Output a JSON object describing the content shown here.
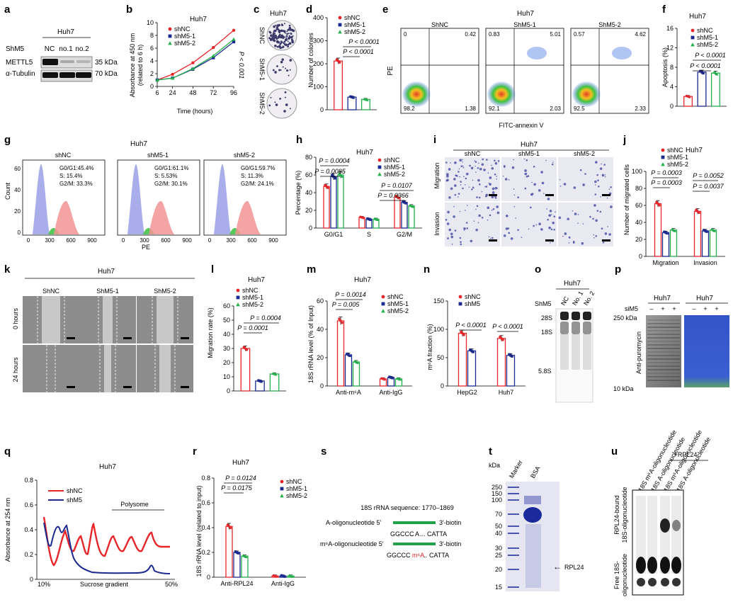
{
  "cell_line": "Huh7",
  "panel_letters": [
    "a",
    "b",
    "c",
    "d",
    "e",
    "f",
    "g",
    "h",
    "i",
    "j",
    "k",
    "l",
    "m",
    "n",
    "o",
    "p",
    "q",
    "r",
    "s",
    "t",
    "u"
  ],
  "legend": {
    "nc": "shNC",
    "m1": "shM5-1",
    "m2": "shM5-2",
    "m": "shM5",
    "blot_nc": "ShNC",
    "blot_m1": "ShM5-1",
    "blot_m2": "ShM5-2"
  },
  "colors": {
    "nc": "#e8262a",
    "m1": "#1b2a8f",
    "m2": "#22b04b"
  },
  "panel_a": {
    "row_label": "ShM5",
    "lanes": [
      "NC",
      "no.1",
      "no.2"
    ],
    "bands": [
      {
        "name": "METTL5",
        "size": "35 kDa"
      },
      {
        "name": "α-Tubulin",
        "size": "70 kDa"
      }
    ]
  },
  "panel_b": {
    "ylabel": "Absorbance at 450 nm",
    "ylabel2": "(related to 6 h)",
    "xlabel": "Time (hours)",
    "pval": "P < 0.001",
    "chart_data": {
      "type": "line",
      "x": [
        6,
        24,
        48,
        72,
        96
      ],
      "ylim": [
        0,
        10
      ],
      "series": [
        {
          "name": "shNC",
          "values": [
            1.0,
            1.9,
            3.7,
            6.1,
            8.8
          ]
        },
        {
          "name": "shM5-1",
          "values": [
            1.0,
            1.3,
            2.7,
            4.5,
            7.0
          ]
        },
        {
          "name": "shM5-2",
          "values": [
            1.0,
            1.3,
            2.8,
            4.8,
            7.4
          ]
        }
      ]
    }
  },
  "panel_c": {
    "labels": [
      "ShNC",
      "ShM5-1",
      "ShM5-2"
    ]
  },
  "panel_d": {
    "ylabel": "Number of colonies",
    "pvals": [
      "P < 0.0001",
      "P < 0.0001"
    ],
    "chart_data": {
      "type": "bar",
      "categories": [
        "shNC",
        "shM5-1",
        "shM5-2"
      ],
      "values": [
        212,
        55,
        45
      ],
      "ylim": [
        0,
        400
      ]
    }
  },
  "panel_e": {
    "xlabel": "FITC-annexin V",
    "ylabel": "PE",
    "titles": [
      "ShNC",
      "ShM5-1",
      "ShM5-2"
    ],
    "quadrants": [
      {
        "ul": "0",
        "ur": "0.42",
        "ll": "98.2",
        "lr": "1.38"
      },
      {
        "ul": "0.83",
        "ur": "5.01",
        "ll": "92.1",
        "lr": "2.03"
      },
      {
        "ul": "0.57",
        "ur": "4.62",
        "ll": "92.5",
        "lr": "2.33"
      }
    ]
  },
  "panel_f": {
    "ylabel": "Apoptosis (%)",
    "pvals": [
      "P < 0.0001",
      "P < 0.0001"
    ],
    "chart_data": {
      "type": "bar",
      "categories": [
        "shNC",
        "shM5-1",
        "shM5-2"
      ],
      "values": [
        2.0,
        7.0,
        6.8
      ],
      "ylim": [
        0,
        16
      ]
    }
  },
  "panel_g": {
    "ylabel": "Count",
    "xlabel": "PE",
    "titles": [
      "shNC",
      "shM5-1",
      "shM5-2"
    ],
    "stats": [
      [
        "G0/G1:45.4%",
        "S: 15.4%",
        "G2/M: 33.3%"
      ],
      [
        "G0/G1:61.1%",
        "S: 5.53%",
        "G2/M: 30.1%"
      ],
      [
        "G0/G1:59.7%",
        "S: 11.3%",
        "G2/M: 24.1%"
      ]
    ]
  },
  "panel_h": {
    "ylabel": "Percentage (%)",
    "pvals": [
      "P = 0.0004",
      "P = 0.0085",
      "P = 0.0107",
      "P = 0.0366"
    ],
    "chart_data": {
      "type": "bar",
      "categories": [
        "G0/G1",
        "S",
        "G2/M"
      ],
      "ylim": [
        0,
        80
      ],
      "series": [
        {
          "name": "shNC",
          "values": [
            47,
            12,
            35
          ]
        },
        {
          "name": "shM5-1",
          "values": [
            58,
            10,
            29
          ]
        },
        {
          "name": "shM5-2",
          "values": [
            60,
            10,
            25
          ]
        }
      ]
    }
  },
  "panel_i": {
    "cols": [
      "shNC",
      "shM5-1",
      "shM5-2"
    ],
    "rows": [
      "Migration",
      "Invasion"
    ]
  },
  "panel_j": {
    "ylabel": "Number of migrated cells",
    "pvals": [
      "P = 0.0003",
      "P = 0.0003",
      "P = 0.0052",
      "P = 0.0037"
    ],
    "chart_data": {
      "type": "bar",
      "categories": [
        "Migration",
        "Invasion"
      ],
      "ylim": [
        0,
        100
      ],
      "series": [
        {
          "name": "shNC",
          "values": [
            62,
            53
          ]
        },
        {
          "name": "shM5-1",
          "values": [
            28,
            30
          ]
        },
        {
          "name": "shM5-2",
          "values": [
            31,
            31
          ]
        }
      ]
    }
  },
  "panel_k": {
    "cols": [
      "ShNC",
      "ShM5-1",
      "ShM5-2"
    ],
    "rows": [
      "0 hours",
      "24 hours"
    ]
  },
  "panel_l": {
    "ylabel": "Migration rate (%)",
    "pvals": [
      "P = 0.0004",
      "P = 0.0001"
    ],
    "chart_data": {
      "type": "bar",
      "categories": [
        "shNC",
        "shM5-1",
        "shM5-2"
      ],
      "values": [
        30,
        7,
        12
      ],
      "ylim": [
        0,
        60
      ]
    }
  },
  "panel_m": {
    "ylabel": "18S rRNA level (% of Input)",
    "pvals": [
      "P = 0.0014",
      "P = 0.005"
    ],
    "chart_data": {
      "type": "bar",
      "categories": [
        "Anti-m⁶A",
        "Anti-IgG"
      ],
      "ylim": [
        0,
        60
      ],
      "series": [
        {
          "name": "shNC",
          "values": [
            46,
            5
          ]
        },
        {
          "name": "shM5-1",
          "values": [
            22,
            6
          ]
        },
        {
          "name": "shM5-2",
          "values": [
            17,
            5
          ]
        }
      ]
    }
  },
  "panel_n": {
    "ylabel": "m⁶A fraction (%)",
    "pvals": [
      "P < 0.0001",
      "P < 0.0001"
    ],
    "chart_data": {
      "type": "bar",
      "categories": [
        "HepG2",
        "Huh7"
      ],
      "ylim": [
        0,
        150
      ],
      "series": [
        {
          "name": "shNC",
          "values": [
            93,
            84
          ]
        },
        {
          "name": "shM5",
          "values": [
            62,
            54
          ]
        }
      ]
    }
  },
  "panel_o": {
    "row_label": "ShM5",
    "lanes": [
      "NC",
      "No. 1",
      "No. 2"
    ],
    "bands": [
      "28S",
      "18S",
      "5.8S"
    ]
  },
  "panel_p": {
    "titles": [
      "Huh7",
      "Huh7"
    ],
    "row_label": "siM5",
    "signs": [
      "–",
      "+",
      "+"
    ],
    "markers": [
      "250 kDa",
      "10 kDa"
    ],
    "ylabel": "Anti-puromycin"
  },
  "panel_q": {
    "ylabel": "Absorbance at 254 nm",
    "xlabel": "Sucrose gradient",
    "xstart": "10%",
    "xend": "50%",
    "polysome": "Polysome",
    "series_names": [
      "shNC",
      "shM5"
    ],
    "chart_data": {
      "type": "line",
      "ylim": [
        0,
        0.8
      ],
      "yticks": [
        0,
        0.2,
        0.4,
        0.6,
        0.8
      ]
    }
  },
  "panel_r": {
    "ylabel": "18S rRNA level (related to input)",
    "pvals": [
      "P = 0.0124",
      "P = 0.0175"
    ],
    "chart_data": {
      "type": "bar",
      "categories": [
        "Anti-RPL24",
        "Anti-IgG"
      ],
      "ylim": [
        0,
        0.8
      ],
      "series": [
        {
          "name": "shNC",
          "values": [
            0.41,
            0.01
          ]
        },
        {
          "name": "shM5-1",
          "values": [
            0.2,
            0.01
          ]
        },
        {
          "name": "shM5-2",
          "values": [
            0.17,
            0.01
          ]
        }
      ]
    }
  },
  "panel_s": {
    "header": "18S rRNA sequence: 1770–1869",
    "a_label": "A-oligonucleotide 5′",
    "biotin": "3′-biotin",
    "a_seq_pre": "GGCCC",
    "a_seq_mid": "A",
    "a_seq_post": "CATTA",
    "m_label": "m⁶A-oligonucleotide 5′",
    "m_seq_mid": "m⁶A"
  },
  "panel_t": {
    "unit": "kDa",
    "lanes": [
      "Marker",
      "BSA"
    ],
    "markers": [
      "250",
      "150",
      "100",
      "70",
      "50",
      "40",
      "30",
      "25",
      "20",
      "15"
    ],
    "arrow": "RPL24"
  },
  "panel_u": {
    "top": "+RPL24",
    "lanes": [
      "18S m⁶A-oligonucleotide",
      "18S A-oligonucleotide",
      "18S m⁶A-oligonucleotide",
      "18S A-oligonucleotide"
    ],
    "bound": "RPL24-bound",
    "bound2": "18S-oligonucleotide",
    "free": "Free 18S-",
    "free2": "oligonucleotide"
  }
}
